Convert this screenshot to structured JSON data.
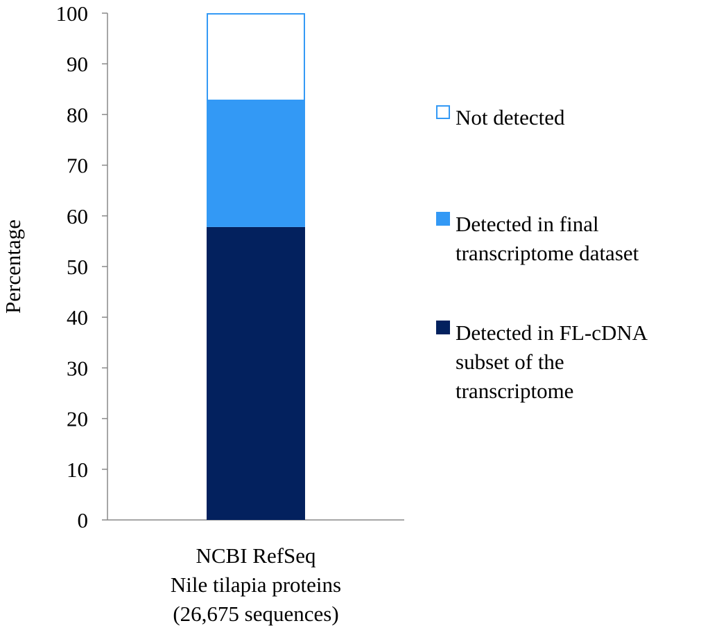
{
  "chart_data": {
    "type": "bar",
    "stacked": true,
    "categories": [
      "NCBI RefSeq\nNile tilapia proteins\n(26,675 sequences)"
    ],
    "series": [
      {
        "name": "Detected in FL-cDNA subset of the transcriptome",
        "values": [
          57.8
        ],
        "color": "#03215e"
      },
      {
        "name": "Detected in final transcriptome dataset",
        "values": [
          25.0
        ],
        "color": "#3399f5"
      },
      {
        "name": "Not detected",
        "values": [
          17.2
        ],
        "color": "#ffffff",
        "stroke": "#3399f5"
      }
    ],
    "ylabel": "Percentage",
    "xlabel": "",
    "ylim": [
      0,
      100
    ],
    "yticks": [
      0,
      10,
      20,
      30,
      40,
      50,
      60,
      70,
      80,
      90,
      100
    ],
    "grid": false,
    "legend_position": "right",
    "legend": [
      {
        "series_index": 2,
        "lines": [
          "Not detected"
        ]
      },
      {
        "series_index": 1,
        "lines": [
          "Detected in final",
          "transcriptome dataset"
        ]
      },
      {
        "series_index": 0,
        "lines": [
          "Detected in FL-cDNA",
          "subset of the",
          "transcriptome"
        ]
      }
    ]
  }
}
